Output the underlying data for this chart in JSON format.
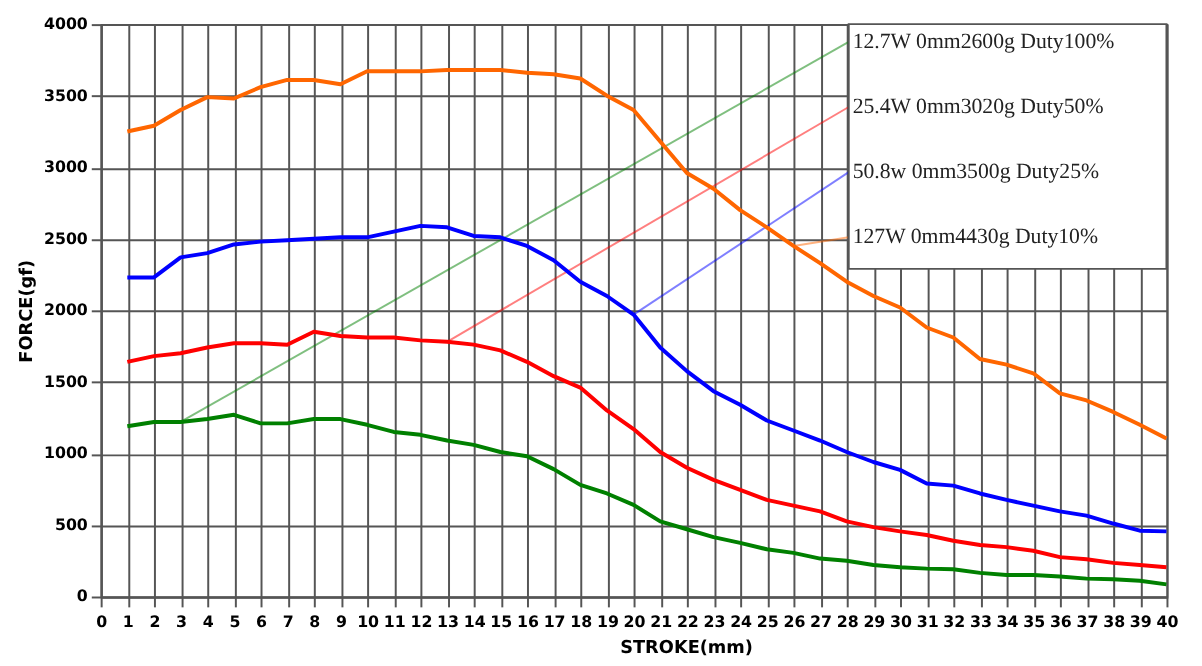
{
  "chart_data": {
    "type": "line",
    "xlabel": "STROKE(mm)",
    "ylabel": "FORCE(gf)",
    "x": [
      1,
      2,
      3,
      4,
      5,
      6,
      7,
      8,
      9,
      10,
      11,
      12,
      13,
      14,
      15,
      16,
      17,
      18,
      19,
      20,
      21,
      22,
      23,
      24,
      25,
      26,
      27,
      28,
      29,
      30,
      31,
      32,
      33,
      34,
      35,
      36,
      37,
      38,
      39,
      40
    ],
    "series": [
      {
        "name": "12.7W 0mm2600g  Duty100%",
        "color": "#008000",
        "values": [
          1190,
          1220,
          1220,
          1240,
          1270,
          1210,
          1210,
          1240,
          1240,
          1200,
          1150,
          1130,
          1090,
          1060,
          1010,
          980,
          890,
          780,
          720,
          640,
          525,
          470,
          415,
          375,
          330,
          305,
          265,
          250,
          220,
          205,
          195,
          190,
          165,
          150,
          150,
          140,
          125,
          120,
          110,
          85
        ]
      },
      {
        "name": "25.4W 0mm3020g  Duty50%",
        "color": "#ff0000",
        "values": [
          1640,
          1680,
          1700,
          1740,
          1770,
          1770,
          1760,
          1850,
          1820,
          1810,
          1810,
          1790,
          1780,
          1760,
          1720,
          1640,
          1540,
          1460,
          1300,
          1170,
          1010,
          900,
          815,
          745,
          675,
          635,
          595,
          525,
          485,
          455,
          430,
          390,
          360,
          345,
          320,
          275,
          260,
          235,
          220,
          205
        ]
      },
      {
        "name": "50.8w 0mm3500g   Duty25%",
        "color": "#0000ff",
        "values": [
          2230,
          2230,
          2370,
          2400,
          2460,
          2480,
          2490,
          2500,
          2510,
          2510,
          2550,
          2590,
          2580,
          2520,
          2510,
          2450,
          2350,
          2200,
          2100,
          1970,
          1740,
          1575,
          1435,
          1340,
          1230,
          1160,
          1090,
          1010,
          940,
          885,
          790,
          775,
          720,
          675,
          635,
          595,
          565,
          510,
          460,
          455
        ]
      },
      {
        "name": "127W 0mm4430g  Duty10%",
        "color": "#ff6600",
        "values": [
          3250,
          3290,
          3400,
          3490,
          3480,
          3560,
          3610,
          3610,
          3580,
          3670,
          3670,
          3670,
          3680,
          3680,
          3680,
          3660,
          3650,
          3620,
          3500,
          3400,
          3180,
          2960,
          2850,
          2700,
          2580,
          2450,
          2330,
          2200,
          2100,
          2020,
          1880,
          1810,
          1660,
          1620,
          1560,
          1420,
          1370,
          1290,
          1200,
          1105
        ]
      }
    ],
    "xlim": [
      0,
      40
    ],
    "xticks": [
      0,
      1,
      2,
      3,
      4,
      5,
      6,
      7,
      8,
      9,
      10,
      11,
      12,
      13,
      14,
      15,
      16,
      17,
      18,
      19,
      20,
      21,
      22,
      23,
      24,
      25,
      26,
      27,
      28,
      29,
      30,
      31,
      32,
      33,
      34,
      35,
      36,
      37,
      38,
      39,
      40
    ],
    "ylim": [
      0,
      4000
    ],
    "yticks": [
      0,
      500,
      1000,
      1500,
      2000,
      2500,
      3000,
      3500,
      4000
    ],
    "grid": true,
    "legend": "top right",
    "marker": "none",
    "line_style": "solid"
  }
}
